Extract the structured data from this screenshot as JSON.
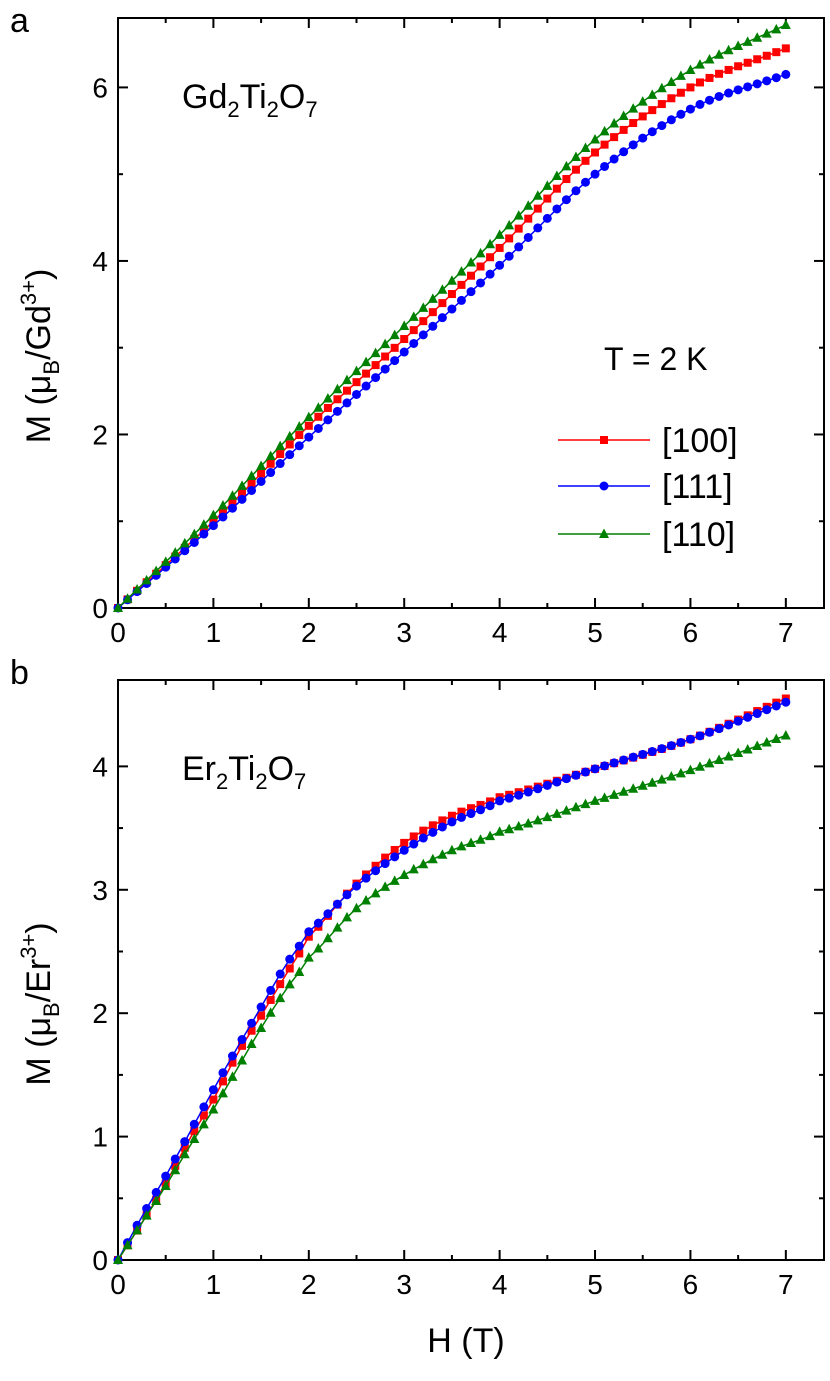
{
  "figure": {
    "x_axis_title": "H (T)",
    "legend_temperature": "T = 2 K",
    "legend": [
      {
        "label": "[100]",
        "color": "#ff0000",
        "marker": "square"
      },
      {
        "label": "[111]",
        "color": "#0000ff",
        "marker": "circle"
      },
      {
        "label": "[110]",
        "color": "#008000",
        "marker": "triangle"
      }
    ]
  },
  "chart_data": [
    {
      "panel_label": "a",
      "type": "line",
      "compound": {
        "main": "Gd",
        "sub1": "2",
        "mid": "Ti",
        "sub2": "2",
        "end": "O",
        "sub3": "7"
      },
      "ylabel": {
        "prefix": "M (μ",
        "sub": "B",
        "mid": "/Gd",
        "sup": "3+",
        "suffix": ")"
      },
      "xlabel": "H (T)",
      "xlim": [
        0,
        7.4
      ],
      "ylim": [
        0,
        6.8
      ],
      "xticks": [
        0,
        1,
        2,
        3,
        4,
        5,
        6,
        7
      ],
      "xtick_labels": [
        "0",
        "1",
        "2",
        "3",
        "4",
        "5",
        "6",
        "7"
      ],
      "yticks": [
        0,
        2,
        4,
        6
      ],
      "ytick_labels": [
        "0",
        "2",
        "4",
        "6"
      ],
      "x": [
        0,
        1,
        2,
        3,
        4,
        5,
        6,
        7
      ],
      "series": [
        {
          "name": "[100]",
          "color": "#ff0000",
          "marker": "square",
          "values": [
            0,
            1.0,
            2.1,
            3.1,
            4.15,
            5.25,
            6.0,
            6.45
          ]
        },
        {
          "name": "[111]",
          "color": "#0000ff",
          "marker": "circle",
          "values": [
            0,
            0.95,
            1.97,
            2.95,
            3.95,
            5.0,
            5.75,
            6.15
          ]
        },
        {
          "name": "[110]",
          "color": "#008000",
          "marker": "triangle",
          "values": [
            0,
            1.07,
            2.2,
            3.25,
            4.3,
            5.4,
            6.2,
            6.72
          ]
        }
      ]
    },
    {
      "panel_label": "b",
      "type": "line",
      "compound": {
        "main": "Er",
        "sub1": "2",
        "mid": "Ti",
        "sub2": "2",
        "end": "O",
        "sub3": "7"
      },
      "ylabel": {
        "prefix": "M (μ",
        "sub": "B",
        "mid": "/Er",
        "sup": "3+",
        "suffix": ")"
      },
      "xlabel": "H (T)",
      "xlim": [
        0,
        7.4
      ],
      "ylim": [
        0,
        4.7
      ],
      "xticks": [
        0,
        1,
        2,
        3,
        4,
        5,
        6,
        7
      ],
      "xtick_labels": [
        "0",
        "1",
        "2",
        "3",
        "4",
        "5",
        "6",
        "7"
      ],
      "yticks": [
        0,
        1,
        2,
        3,
        4
      ],
      "ytick_labels": [
        "0",
        "1",
        "2",
        "3",
        "4"
      ],
      "x": [
        0,
        0.25,
        0.5,
        0.75,
        1.0,
        1.25,
        1.5,
        1.75,
        2.0,
        2.5,
        3.0,
        3.5,
        4.0,
        5.0,
        6.0,
        7.0
      ],
      "series": [
        {
          "name": "[100]",
          "color": "#ff0000",
          "marker": "square",
          "values": [
            0,
            0.3,
            0.62,
            0.98,
            1.3,
            1.67,
            1.98,
            2.3,
            2.62,
            3.05,
            3.38,
            3.6,
            3.75,
            3.98,
            4.22,
            4.55
          ]
        },
        {
          "name": "[111]",
          "color": "#0000ff",
          "marker": "circle",
          "values": [
            0,
            0.35,
            0.68,
            1.03,
            1.38,
            1.72,
            2.05,
            2.38,
            2.66,
            3.03,
            3.32,
            3.55,
            3.72,
            3.98,
            4.22,
            4.52
          ]
        },
        {
          "name": "[110]",
          "color": "#008000",
          "marker": "triangle",
          "values": [
            0,
            0.3,
            0.6,
            0.92,
            1.22,
            1.55,
            1.88,
            2.18,
            2.45,
            2.85,
            3.12,
            3.32,
            3.47,
            3.72,
            3.97,
            4.25
          ]
        }
      ]
    }
  ]
}
